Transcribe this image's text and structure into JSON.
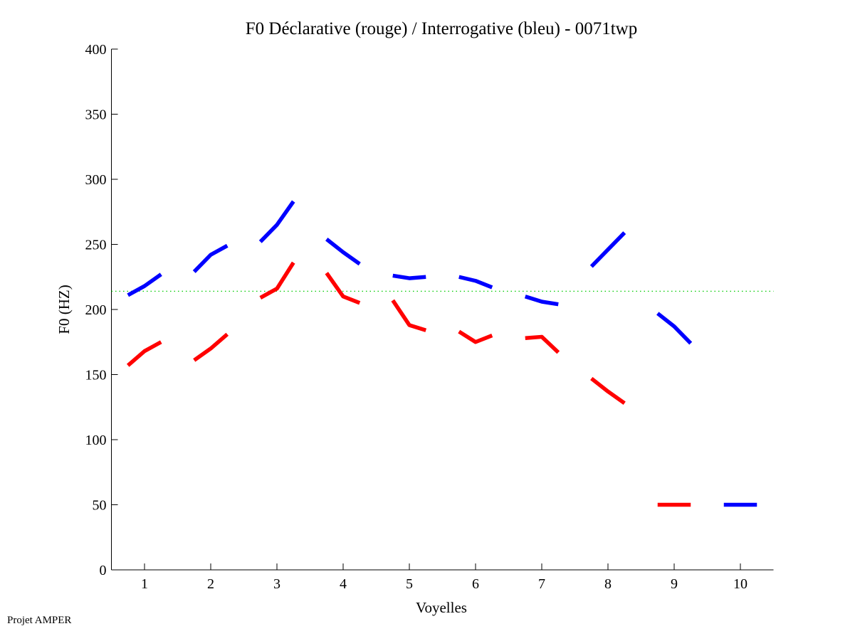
{
  "chart_data": {
    "type": "line",
    "title": "F0 Déclarative (rouge) / Interrogative (bleu) - 0071twp",
    "xlabel": "Voyelles",
    "ylabel": "F0 (HZ)",
    "xlim": [
      0.5,
      10.5
    ],
    "ylim": [
      0,
      400
    ],
    "xticks": [
      1,
      2,
      3,
      4,
      5,
      6,
      7,
      8,
      9,
      10
    ],
    "yticks": [
      0,
      50,
      100,
      150,
      200,
      250,
      300,
      350,
      400
    ],
    "grid": false,
    "reference_line": {
      "y": 214,
      "color": "#00cc00",
      "style": "dotted"
    },
    "series": [
      {
        "name": "Déclarative",
        "color": "#ff0000",
        "segments": [
          {
            "vowel": 1,
            "values": [
              157,
              168,
              175
            ]
          },
          {
            "vowel": 2,
            "values": [
              161,
              170,
              181
            ]
          },
          {
            "vowel": 3,
            "values": [
              209,
              216,
              236
            ]
          },
          {
            "vowel": 4,
            "values": [
              228,
              210,
              205
            ]
          },
          {
            "vowel": 5,
            "values": [
              207,
              188,
              184
            ]
          },
          {
            "vowel": 6,
            "values": [
              183,
              175,
              180
            ]
          },
          {
            "vowel": 7,
            "values": [
              178,
              179,
              167
            ]
          },
          {
            "vowel": 8,
            "values": [
              147,
              137,
              128
            ]
          }
        ],
        "legend_marker": {
          "x": [
            8.75,
            9.25
          ],
          "y": 50
        }
      },
      {
        "name": "Interrogative",
        "color": "#0000ff",
        "segments": [
          {
            "vowel": 1,
            "values": [
              211,
              218,
              227
            ]
          },
          {
            "vowel": 2,
            "values": [
              229,
              242,
              249
            ]
          },
          {
            "vowel": 3,
            "values": [
              252,
              265,
              283
            ]
          },
          {
            "vowel": 4,
            "values": [
              254,
              244,
              235
            ]
          },
          {
            "vowel": 5,
            "values": [
              226,
              224,
              225
            ]
          },
          {
            "vowel": 6,
            "values": [
              225,
              222,
              217
            ]
          },
          {
            "vowel": 7,
            "values": [
              210,
              206,
              204
            ]
          },
          {
            "vowel": 8,
            "values": [
              233,
              246,
              259
            ]
          },
          {
            "vowel": 9,
            "values": [
              197,
              187,
              174
            ]
          }
        ],
        "legend_marker": {
          "x": [
            9.75,
            10.25
          ],
          "y": 50
        }
      }
    ]
  },
  "footer": "Projet AMPER"
}
